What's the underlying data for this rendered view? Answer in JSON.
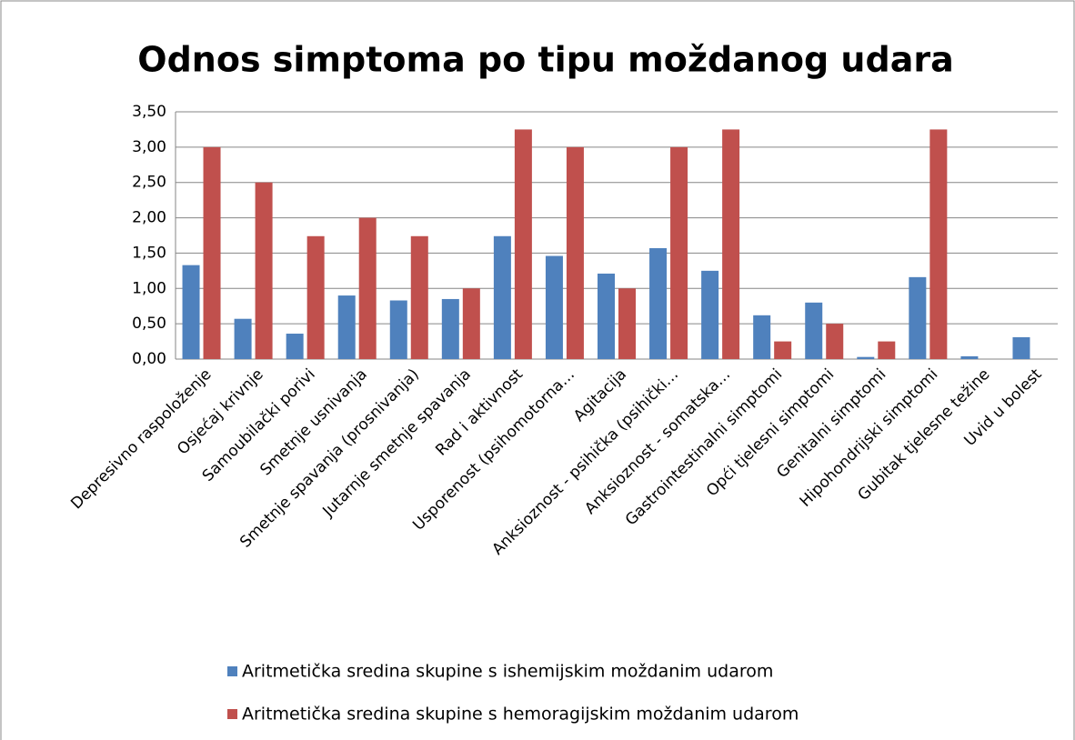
{
  "chart_data": {
    "type": "bar",
    "title": "Odnos simptoma po tipu moždanog udara",
    "categories": [
      "Depresivno raspoloženje",
      "Osjećaj krivnje",
      "Samoubilački porivi",
      "Smetnje usnivanja",
      "Smetnje spavanja (prosnivanja)",
      "Jutarnje smetnje spavanja",
      "Rad i aktivnost",
      "Usporenost (psihomotorna…",
      "Agitacija",
      "Anksioznost - psihička (psihički…",
      "Anksioznost - somatska…",
      "Gastrointestinalni simptomi",
      "Opći tjelesni simptomi",
      "Genitalni simptomi",
      "Hipohondrijski simptomi",
      "Gubitak tjelesne težine",
      "Uvid u bolest"
    ],
    "series": [
      {
        "name": "Aritmetička sredina skupine s ishemijskim moždanim udarom",
        "color": "#4f81bd",
        "values": [
          1.33,
          0.57,
          0.36,
          0.9,
          0.83,
          0.85,
          1.74,
          1.46,
          1.21,
          1.57,
          1.25,
          0.62,
          0.8,
          0.03,
          1.16,
          0.04,
          0.31
        ]
      },
      {
        "name": "Aritmetička sredina skupine s hemoragijskim moždanim udarom",
        "color": "#c0504d",
        "values": [
          3.0,
          2.5,
          1.74,
          2.0,
          1.74,
          1.0,
          3.25,
          3.0,
          1.0,
          3.0,
          3.25,
          0.25,
          0.5,
          0.25,
          3.25,
          0,
          0
        ]
      }
    ],
    "ylim": [
      0,
      3.5
    ],
    "yticks": [
      {
        "value": 0,
        "label": "0,00"
      },
      {
        "value": 0.5,
        "label": "0,50"
      },
      {
        "value": 1,
        "label": "1,00"
      },
      {
        "value": 1.5,
        "label": "1,50"
      },
      {
        "value": 2,
        "label": "2,00"
      },
      {
        "value": 2.5,
        "label": "2,50"
      },
      {
        "value": 3,
        "label": "3,00"
      },
      {
        "value": 3.5,
        "label": "3,50"
      }
    ],
    "grid": true
  }
}
